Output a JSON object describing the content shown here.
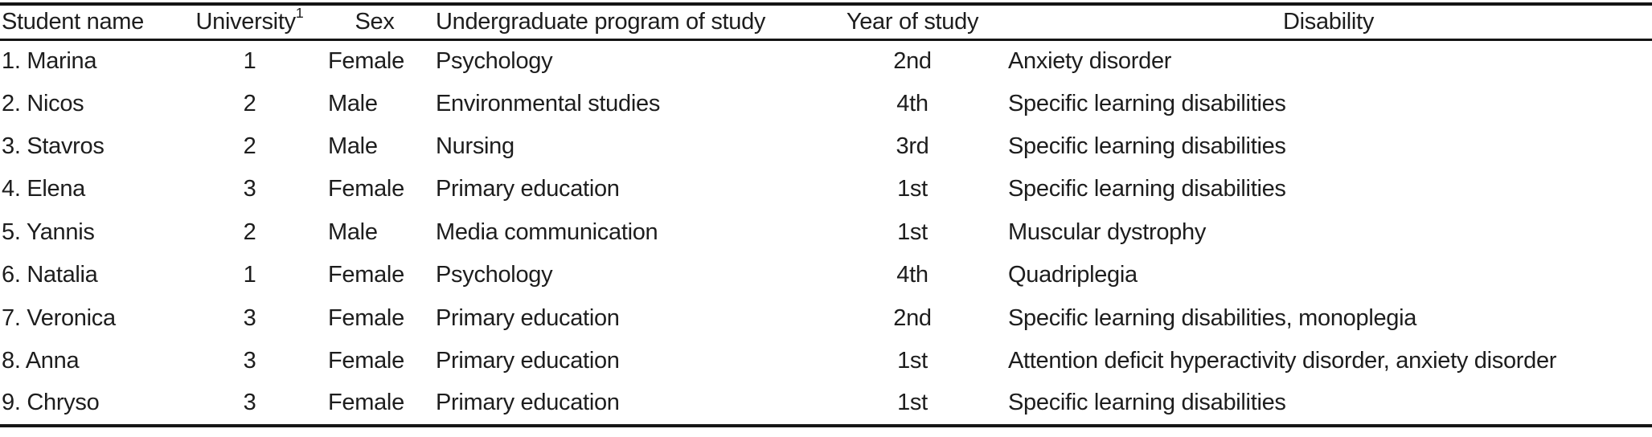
{
  "table": {
    "columns": [
      {
        "label": "Student name"
      },
      {
        "label": "University",
        "sup": "1"
      },
      {
        "label": "Sex"
      },
      {
        "label": "Undergraduate program of study"
      },
      {
        "label": "Year of study"
      },
      {
        "label": "Disability"
      }
    ],
    "rows": [
      [
        "1. Marina",
        "1",
        "Female",
        "Psychology",
        "2nd",
        "Anxiety disorder"
      ],
      [
        "2. Nicos",
        "2",
        "Male",
        "Environmental studies",
        "4th",
        "Specific learning disabilities"
      ],
      [
        "3. Stavros",
        "2",
        "Male",
        "Nursing",
        "3rd",
        "Specific learning disabilities"
      ],
      [
        "4. Elena",
        "3",
        "Female",
        "Primary education",
        "1st",
        "Specific learning disabilities"
      ],
      [
        "5. Yannis",
        "2",
        "Male",
        "Media communication",
        "1st",
        "Muscular dystrophy"
      ],
      [
        "6. Natalia",
        "1",
        "Female",
        "Psychology",
        "4th",
        "Quadriplegia"
      ],
      [
        "7. Veronica",
        "3",
        "Female",
        "Primary education",
        "2nd",
        "Specific learning disabilities, monoplegia"
      ],
      [
        "8. Anna",
        "3",
        "Female",
        "Primary education",
        "1st",
        "Attention deficit hyperactivity disorder, anxiety disorder"
      ],
      [
        "9. Chryso",
        "3",
        "Female",
        "Primary education",
        "1st",
        "Specific learning disabilities"
      ]
    ],
    "colors": {
      "text": "#1d1d1d",
      "rule": "#151515",
      "background": "#ffffff"
    }
  }
}
